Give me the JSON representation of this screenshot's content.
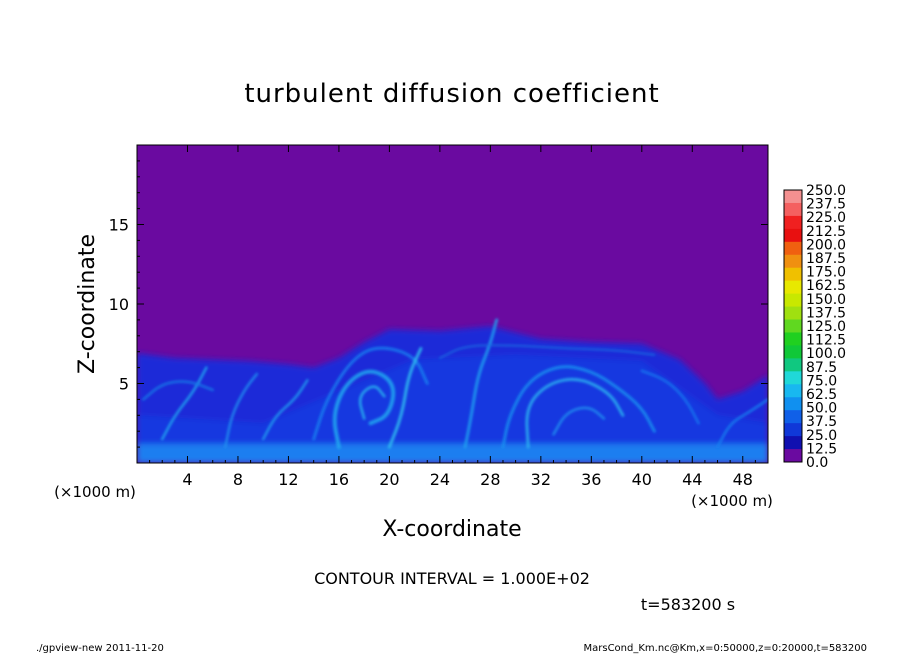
{
  "chart_data": {
    "type": "heatmap",
    "title": "turbulent diffusion coefficient",
    "xlabel": "X-coordinate",
    "ylabel": "Z-coordinate",
    "x_unit": "(×1000 m)",
    "y_unit": "(×1000 m)",
    "xlim": [
      0,
      50
    ],
    "ylim": [
      0,
      20
    ],
    "x_ticks": [
      "4",
      "8",
      "12",
      "16",
      "20",
      "24",
      "28",
      "32",
      "36",
      "40",
      "44",
      "48"
    ],
    "y_ticks": [
      "5",
      "10",
      "15"
    ],
    "contour_interval": "CONTOUR INTERVAL = 1.000E+02",
    "time_label": "t=583200 s",
    "colorbar": {
      "labels": [
        "250.0",
        "237.5",
        "225.0",
        "212.5",
        "200.0",
        "187.5",
        "175.0",
        "162.5",
        "150.0",
        "137.5",
        "125.0",
        "112.5",
        "100.0",
        "87.5",
        "75.0",
        "62.5",
        "50.0",
        "37.5",
        "25.0",
        "12.5",
        "0.0"
      ],
      "colors": [
        "#f49090",
        "#f46060",
        "#f02020",
        "#e81010",
        "#f06010",
        "#f09010",
        "#f0c000",
        "#e8e800",
        "#c8e800",
        "#a0e010",
        "#60d820",
        "#20d020",
        "#10c838",
        "#10c880",
        "#20d8d8",
        "#18b8f0",
        "#1090f0",
        "#1060e8",
        "#1038d8",
        "#1010b0",
        "#6a0aa0"
      ]
    },
    "background_color": "#6a0aa0"
  },
  "footer": {
    "left": "./gpview-new   2011-11-20",
    "right": "MarsCond_Km.nc@Km,x=0:50000,z=0:20000,t=583200"
  }
}
